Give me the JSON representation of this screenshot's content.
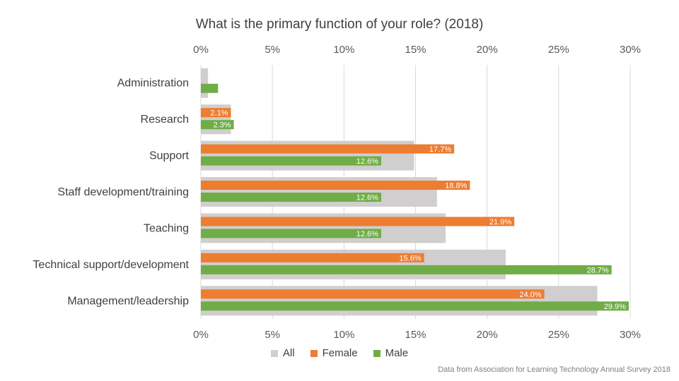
{
  "chart_data": {
    "type": "bar",
    "orientation": "horizontal",
    "title": "What is the primary function of your role? (2018)",
    "categories": [
      "Administration",
      "Research",
      "Support",
      "Staff development/training",
      "Teaching",
      "Technical support/development",
      "Management/leadership"
    ],
    "series": [
      {
        "name": "All",
        "color": "#d0cece",
        "values": [
          0.5,
          2.1,
          14.9,
          16.5,
          17.1,
          21.3,
          27.7
        ],
        "labels": [
          "",
          "",
          "",
          "",
          "",
          "",
          ""
        ]
      },
      {
        "name": "Female",
        "color": "#ed7d31",
        "values": [
          0,
          2.1,
          17.7,
          18.8,
          21.9,
          15.6,
          24.0
        ],
        "labels": [
          "",
          "2.1%",
          "17.7%",
          "18.8%",
          "21.9%",
          "15.6%",
          "24.0%"
        ]
      },
      {
        "name": "Male",
        "color": "#70ad47",
        "values": [
          1.2,
          2.3,
          12.6,
          12.6,
          12.6,
          28.7,
          29.9
        ],
        "labels": [
          "",
          "2.3%",
          "12.6%",
          "12.6%",
          "12.6%",
          "28.7%",
          "29.9%"
        ]
      }
    ],
    "xlim": [
      0,
      30
    ],
    "ticks": [
      "0%",
      "5%",
      "10%",
      "15%",
      "20%",
      "25%",
      "30%"
    ],
    "tick_values": [
      0,
      5,
      10,
      15,
      20,
      25,
      30
    ],
    "grid": true,
    "legend": "bottom"
  },
  "source_note": "Data from Association for Learning Technology Annual Survey 2018"
}
